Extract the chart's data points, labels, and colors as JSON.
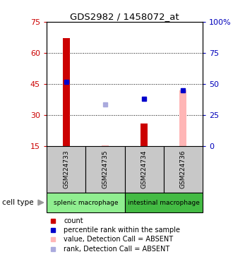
{
  "title": "GDS2982 / 1458072_at",
  "samples": [
    "GSM224733",
    "GSM224735",
    "GSM224734",
    "GSM224736"
  ],
  "group1_name": "splenic macrophage",
  "group2_name": "intestinal macrophage",
  "group1_color": "#90EE90",
  "group2_color": "#44BB44",
  "ylim_left": [
    15,
    75
  ],
  "ylim_right": [
    0,
    100
  ],
  "yticks_left": [
    15,
    30,
    45,
    60,
    75
  ],
  "yticks_right": [
    0,
    25,
    50,
    75,
    100
  ],
  "yticklabels_right": [
    "0",
    "25",
    "50",
    "75",
    "100%"
  ],
  "red_bars": [
    67,
    null,
    26,
    null
  ],
  "pink_bars": [
    null,
    15.5,
    null,
    42
  ],
  "blue_squares": [
    46,
    null,
    38,
    42
  ],
  "lightblue_squares": [
    null,
    35,
    null,
    null
  ],
  "bar_width": 0.18,
  "color_red_bar": "#CC0000",
  "color_pink_bar": "#FFB6B6",
  "color_blue_sq": "#0000CC",
  "color_lblue_sq": "#AAAADD",
  "color_left_axis": "#CC0000",
  "color_right_axis": "#0000BB",
  "color_sample_box": "#C8C8C8",
  "legend": [
    {
      "color": "#CC0000",
      "label": "count"
    },
    {
      "color": "#0000CC",
      "label": "percentile rank within the sample"
    },
    {
      "color": "#FFB6B6",
      "label": "value, Detection Call = ABSENT"
    },
    {
      "color": "#AAAADD",
      "label": "rank, Detection Call = ABSENT"
    }
  ]
}
